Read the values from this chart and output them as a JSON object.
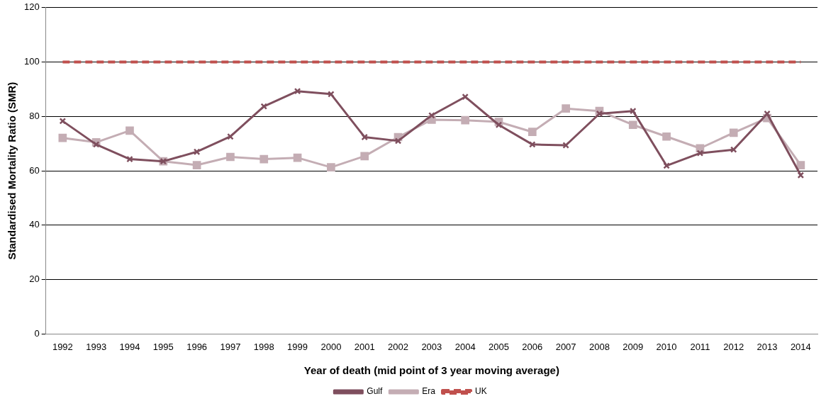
{
  "chart_data": {
    "type": "line",
    "xlabel": "Year of death (mid point of 3 year moving average)",
    "ylabel": "Standardised Mortality Ratio (SMR)",
    "categories": [
      "1992",
      "1993",
      "1994",
      "1995",
      "1996",
      "1997",
      "1998",
      "1999",
      "2000",
      "2001",
      "2002",
      "2003",
      "2004",
      "2005",
      "2006",
      "2007",
      "2008",
      "2009",
      "2010",
      "2011",
      "2012",
      "2013",
      "2014"
    ],
    "series": [
      {
        "name": "Gulf",
        "color": "#7f4f5e",
        "marker": "cross",
        "line_style": "solid",
        "values": [
          78.3,
          69.7,
          64.3,
          63.5,
          67,
          72.6,
          83.7,
          89.3,
          88.2,
          72.4,
          71,
          80.4,
          87.2,
          76.9,
          69.7,
          69.4,
          81,
          82,
          61.9,
          66.5,
          67.8,
          81,
          58.4
        ]
      },
      {
        "name": "Era",
        "color": "#c4adb4",
        "marker": "square",
        "line_style": "solid",
        "values": [
          72.1,
          70.5,
          74.8,
          63.5,
          62.1,
          65.1,
          64.3,
          64.8,
          61.3,
          65.4,
          72.4,
          78.8,
          78.6,
          78,
          74.3,
          82.9,
          82,
          76.9,
          72.6,
          68.3,
          74,
          79.4,
          62.1
        ]
      },
      {
        "name": "UK",
        "color": "#c0504d",
        "marker": "none",
        "line_style": "dashed",
        "values": [
          100,
          100,
          100,
          100,
          100,
          100,
          100,
          100,
          100,
          100,
          100,
          100,
          100,
          100,
          100,
          100,
          100,
          100,
          100,
          100,
          100,
          100,
          100
        ]
      }
    ],
    "ylim": [
      0,
      120
    ],
    "yticks": [
      0,
      20,
      40,
      60,
      80,
      100,
      120
    ],
    "grid": "y",
    "legend": "bottom"
  }
}
